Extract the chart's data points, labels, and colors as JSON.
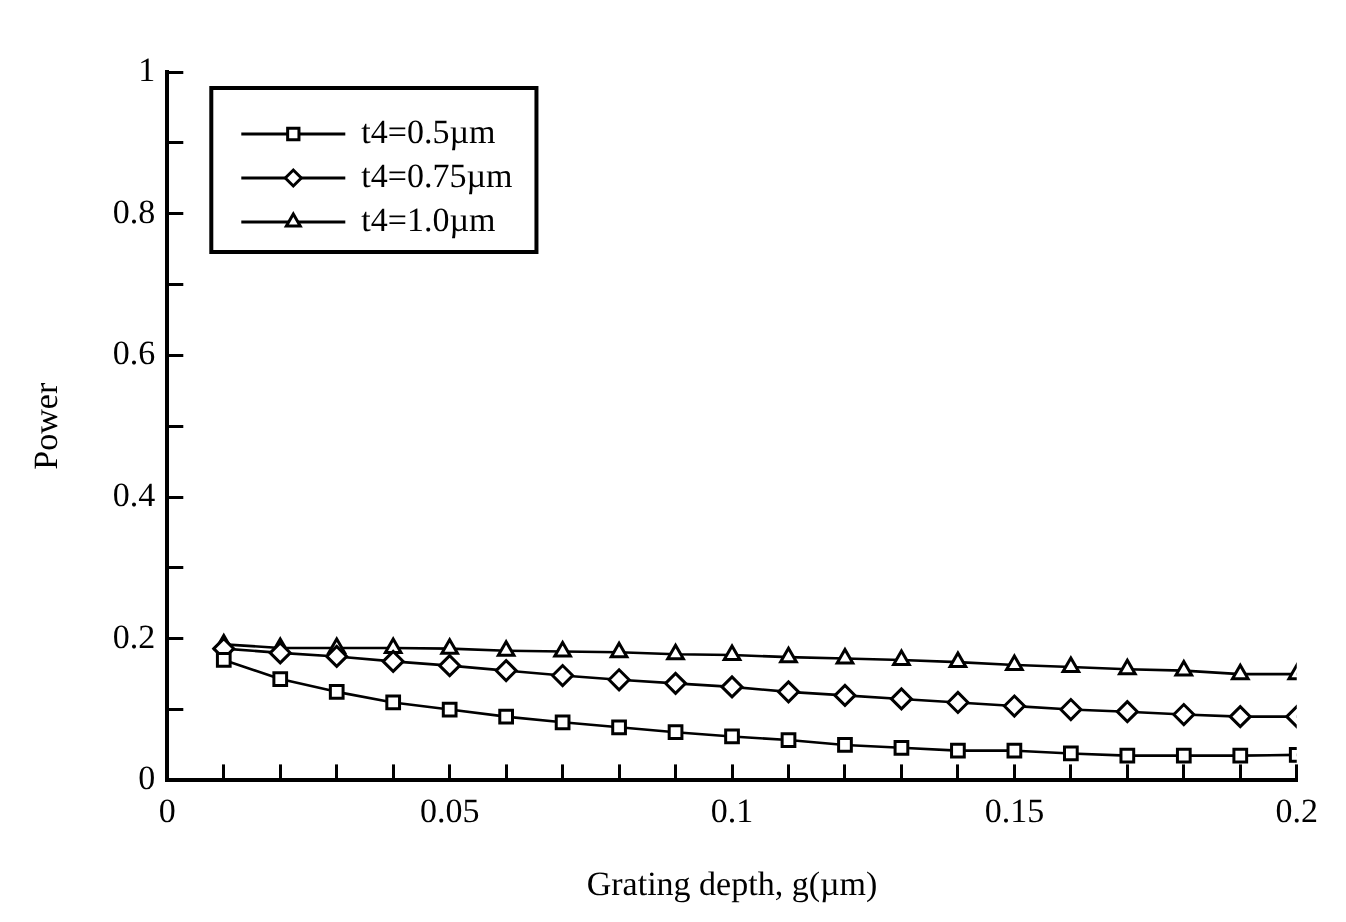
{
  "chart_data": {
    "type": "line",
    "xlabel": "Grating depth, g(µm)",
    "ylabel": "Power",
    "x": [
      0.01,
      0.02,
      0.03,
      0.04,
      0.05,
      0.06,
      0.07,
      0.08,
      0.09,
      0.1,
      0.11,
      0.12,
      0.13,
      0.14,
      0.15,
      0.16,
      0.17,
      0.18,
      0.19,
      0.2
    ],
    "series": [
      {
        "name": "t4=0.5µm",
        "color": "#000000",
        "marker": "square",
        "values": [
          0.17,
          0.143,
          0.125,
          0.11,
          0.1,
          0.09,
          0.082,
          0.075,
          0.068,
          0.062,
          0.057,
          0.05,
          0.046,
          0.042,
          0.042,
          0.038,
          0.035,
          0.035,
          0.035,
          0.036
        ]
      },
      {
        "name": "t4=0.75µm",
        "color": "#000000",
        "marker": "diamond",
        "values": [
          0.186,
          0.18,
          0.175,
          0.168,
          0.162,
          0.155,
          0.148,
          0.142,
          0.137,
          0.132,
          0.125,
          0.12,
          0.115,
          0.11,
          0.105,
          0.1,
          0.097,
          0.093,
          0.09,
          0.09
        ]
      },
      {
        "name": "t4=1.0µm",
        "color": "#000000",
        "marker": "triangle",
        "values": [
          0.192,
          0.187,
          0.187,
          0.187,
          0.186,
          0.183,
          0.182,
          0.181,
          0.178,
          0.177,
          0.174,
          0.172,
          0.17,
          0.167,
          0.163,
          0.16,
          0.157,
          0.155,
          0.15,
          0.15
        ]
      }
    ],
    "xlim": [
      0,
      0.2
    ],
    "xticks": [
      0,
      {
        "value": 0.01,
        "label": null
      },
      {
        "value": 0.02,
        "label": null
      },
      {
        "value": 0.03,
        "label": null
      },
      {
        "value": 0.04,
        "label": null
      },
      0.05,
      {
        "value": 0.06,
        "label": null
      },
      {
        "value": 0.07,
        "label": null
      },
      {
        "value": 0.08,
        "label": null
      },
      {
        "value": 0.09,
        "label": null
      },
      0.1,
      {
        "value": 0.11,
        "label": null
      },
      {
        "value": 0.12,
        "label": null
      },
      {
        "value": 0.13,
        "label": null
      },
      {
        "value": 0.14,
        "label": null
      },
      0.15,
      {
        "value": 0.16,
        "label": null
      },
      {
        "value": 0.17,
        "label": null
      },
      {
        "value": 0.18,
        "label": null
      },
      {
        "value": 0.19,
        "label": null
      },
      0.2
    ],
    "ylim": [
      0,
      1
    ],
    "yticks": [
      0,
      {
        "value": 0.1,
        "label": null
      },
      0.2,
      {
        "value": 0.3,
        "label": null
      },
      0.4,
      {
        "value": 0.5,
        "label": null
      },
      0.6,
      {
        "value": 0.7,
        "label": null
      },
      0.8,
      {
        "value": 0.9,
        "label": null
      },
      1
    ],
    "grid": false,
    "legend": "top left",
    "line_style": "solid"
  }
}
